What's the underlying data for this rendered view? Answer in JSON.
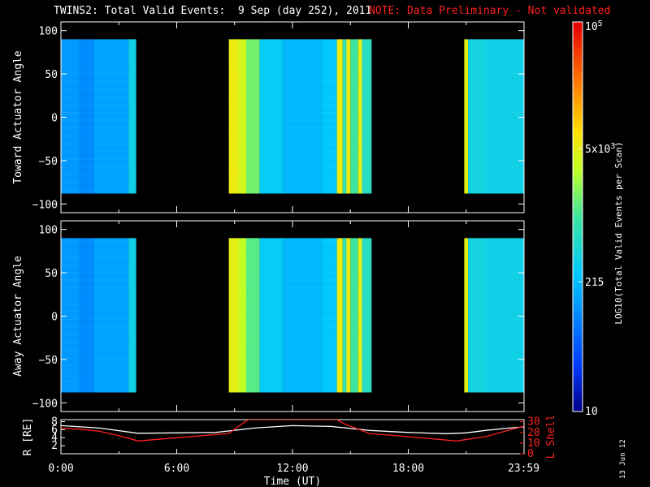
{
  "header": {
    "title": "TWINS2: Total Valid Events:  9 Sep (day 252), 2011",
    "note": "NOTE: Data Preliminary - Not validated",
    "title_color": "#ffffff",
    "note_color": "#ff2020"
  },
  "date_stamp": "13 Jun 12",
  "chart_data": [
    {
      "type": "heatmap",
      "panel": "top",
      "ylabel": "Toward Actuator Angle",
      "yticks": [
        100,
        50,
        0,
        -50,
        -100
      ],
      "ylim": [
        -110,
        110
      ],
      "xlim": [
        0,
        24
      ],
      "angle_range": [
        -88,
        90
      ],
      "data_blocks_hours": [
        [
          0.0,
          3.9
        ],
        [
          8.7,
          16.1
        ],
        [
          20.9,
          24.0
        ]
      ],
      "strips_hours_log10": [
        {
          "x": [
            0.0,
            1.0
          ],
          "v": 2.1
        },
        {
          "x": [
            1.0,
            1.7
          ],
          "v": 2.0
        },
        {
          "x": [
            1.7,
            3.5
          ],
          "v": 2.15
        },
        {
          "x": [
            3.5,
            3.9
          ],
          "v": 2.55
        },
        {
          "x": [
            8.7,
            9.2
          ],
          "v": 3.75
        },
        {
          "x": [
            9.2,
            9.6
          ],
          "v": 3.6
        },
        {
          "x": [
            9.6,
            10.3
          ],
          "v": 3.2
        },
        {
          "x": [
            10.3,
            11.5
          ],
          "v": 2.45
        },
        {
          "x": [
            11.5,
            13.5
          ],
          "v": 2.3
        },
        {
          "x": [
            13.5,
            14.3
          ],
          "v": 2.4
        },
        {
          "x": [
            14.3,
            14.6
          ],
          "v": 3.75
        },
        {
          "x": [
            14.6,
            14.8
          ],
          "v": 2.9
        },
        {
          "x": [
            14.8,
            15.0
          ],
          "v": 3.8
        },
        {
          "x": [
            15.0,
            15.4
          ],
          "v": 3.0
        },
        {
          "x": [
            15.4,
            15.6
          ],
          "v": 3.7
        },
        {
          "x": [
            15.6,
            16.1
          ],
          "v": 2.8
        },
        {
          "x": [
            20.9,
            21.1
          ],
          "v": 3.7
        },
        {
          "x": [
            21.1,
            22.0
          ],
          "v": 2.6
        },
        {
          "x": [
            22.0,
            24.0
          ],
          "v": 2.55
        }
      ]
    },
    {
      "type": "heatmap",
      "panel": "middle",
      "ylabel": "Away Actuator Angle",
      "yticks": [
        100,
        50,
        0,
        -50,
        -100
      ],
      "ylim": [
        -110,
        110
      ],
      "xlim": [
        0,
        24
      ],
      "angle_range": [
        -88,
        90
      ],
      "data_blocks_hours": [
        [
          0.0,
          3.9
        ],
        [
          8.7,
          16.1
        ],
        [
          20.9,
          24.0
        ]
      ],
      "strips_hours_log10": [
        {
          "x": [
            0.0,
            1.0
          ],
          "v": 2.1
        },
        {
          "x": [
            1.0,
            1.7
          ],
          "v": 2.0
        },
        {
          "x": [
            1.7,
            3.5
          ],
          "v": 2.15
        },
        {
          "x": [
            3.5,
            3.9
          ],
          "v": 2.55
        },
        {
          "x": [
            8.7,
            9.2
          ],
          "v": 3.7
        },
        {
          "x": [
            9.2,
            9.6
          ],
          "v": 3.5
        },
        {
          "x": [
            9.6,
            10.3
          ],
          "v": 3.1
        },
        {
          "x": [
            10.3,
            11.5
          ],
          "v": 2.45
        },
        {
          "x": [
            11.5,
            13.5
          ],
          "v": 2.3
        },
        {
          "x": [
            13.5,
            14.3
          ],
          "v": 2.4
        },
        {
          "x": [
            14.3,
            14.6
          ],
          "v": 3.75
        },
        {
          "x": [
            14.6,
            14.8
          ],
          "v": 2.9
        },
        {
          "x": [
            14.8,
            15.0
          ],
          "v": 3.8
        },
        {
          "x": [
            15.0,
            15.4
          ],
          "v": 3.0
        },
        {
          "x": [
            15.4,
            15.6
          ],
          "v": 3.7
        },
        {
          "x": [
            15.6,
            16.1
          ],
          "v": 2.8
        },
        {
          "x": [
            20.9,
            21.1
          ],
          "v": 3.7
        },
        {
          "x": [
            21.1,
            22.0
          ],
          "v": 2.6
        },
        {
          "x": [
            22.0,
            24.0
          ],
          "v": 2.55
        }
      ]
    },
    {
      "type": "line",
      "panel": "bottom",
      "xlabel": "Time (UT)",
      "xticks": [
        "0:00",
        "6:00",
        "12:00",
        "18:00",
        "23:59"
      ],
      "xtick_hours": [
        0,
        6,
        12,
        18,
        23.98
      ],
      "xlim": [
        0,
        24
      ],
      "ylabel_left": "R [RE]",
      "ylabel_right": "L Shell",
      "yticks_left": [
        2,
        4,
        6,
        8
      ],
      "ylim_left": [
        0,
        8.5
      ],
      "yticks_right": [
        0,
        10,
        20,
        30
      ],
      "ylim_right": [
        0,
        32
      ],
      "series": [
        {
          "name": "R [RE]",
          "color": "#ffffff",
          "axis": "left",
          "x": [
            0,
            2,
            4,
            6,
            8,
            10,
            12,
            14,
            16,
            18,
            20,
            21,
            22,
            23,
            24
          ],
          "y": [
            7.0,
            6.4,
            5.1,
            5.2,
            5.3,
            6.4,
            7.0,
            6.8,
            5.8,
            5.3,
            5.0,
            5.2,
            5.8,
            6.3,
            6.7
          ]
        },
        {
          "name": "L Shell",
          "color": "#ff2020",
          "axis": "right",
          "x": [
            0,
            1,
            2,
            3,
            4,
            6,
            8,
            8.7,
            9.3,
            9.7,
            14.3,
            14.7,
            16,
            18,
            20.5,
            22,
            23,
            24
          ],
          "y": [
            24,
            23,
            21,
            17,
            12,
            15,
            18,
            19,
            27,
            32,
            32,
            28,
            19,
            16,
            12,
            16,
            21,
            26
          ]
        }
      ]
    },
    {
      "type": "colorbar",
      "label": "LOG10(Total Valid Events per Scan)",
      "scale": "log",
      "range": [
        10,
        100000
      ],
      "tick_labels": [
        "10",
        "215",
        "5x10^3",
        "10^5"
      ],
      "tick_values": [
        10,
        215,
        5000,
        100000
      ]
    }
  ]
}
